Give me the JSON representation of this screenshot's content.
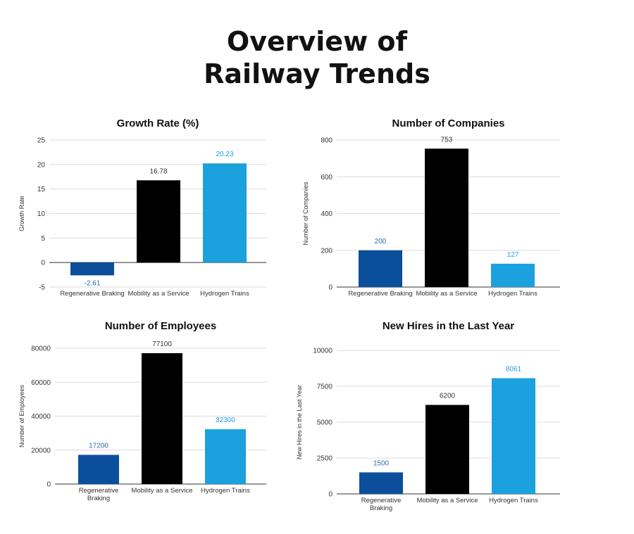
{
  "page_title": [
    "Overview of",
    "Railway Trends"
  ],
  "colors": {
    "regenerative": "#0b4f9c",
    "mobility": "#000000",
    "hydrogen": "#1ba1de",
    "label_dark": "#333333",
    "label_regen": "#2a6fb8",
    "label_hydro": "#1ba1de"
  },
  "chart_data": [
    {
      "type": "bar",
      "title": "Growth Rate (%)",
      "ylabel": "Growth Rate",
      "xlabel": "",
      "categories": [
        [
          "Regenerative Braking"
        ],
        [
          "Mobility as a Service"
        ],
        [
          "Hydrogen Trains"
        ]
      ],
      "values": [
        -2.61,
        16.78,
        20.23
      ],
      "value_labels": [
        "-2.61",
        "16.78",
        "20.23"
      ],
      "ylim": [
        -5,
        25
      ],
      "yticks": [
        -5,
        0,
        5,
        10,
        15,
        20,
        25
      ],
      "ytick_labels": [
        "-5",
        "0",
        "5",
        "10",
        "15",
        "20",
        "25"
      ],
      "grid": true
    },
    {
      "type": "bar",
      "title": "Number of Companies",
      "ylabel": "Number of Companies",
      "xlabel": "",
      "categories": [
        [
          "Regenerative Braking"
        ],
        [
          "Mobility as a Service"
        ],
        [
          "Hydrogen Trains"
        ]
      ],
      "values": [
        200,
        753,
        127
      ],
      "value_labels": [
        "200",
        "753",
        "127"
      ],
      "ylim": [
        0,
        800
      ],
      "yticks": [
        0,
        200,
        400,
        600,
        800
      ],
      "ytick_labels": [
        "0",
        "200",
        "400",
        "600",
        "800"
      ],
      "grid": true
    },
    {
      "type": "bar",
      "title": "Number of Employees",
      "ylabel": "Number of Employees",
      "xlabel": "",
      "categories": [
        [
          "Regenerative",
          "Braking"
        ],
        [
          "Mobility as a Service"
        ],
        [
          "Hydrogen Trains"
        ]
      ],
      "values": [
        17200,
        77100,
        32300
      ],
      "value_labels": [
        "17200",
        "77100",
        "32300"
      ],
      "ylim": [
        0,
        80000
      ],
      "yticks": [
        0,
        20000,
        40000,
        60000,
        80000
      ],
      "ytick_labels": [
        "0",
        "20000",
        "40000",
        "60000",
        "80000"
      ],
      "grid": true
    },
    {
      "type": "bar",
      "title": "New Hires in the Last Year",
      "ylabel": "New Hires in the Last Year",
      "xlabel": "",
      "categories": [
        [
          "Regenerative",
          "Braking"
        ],
        [
          "Mobility as a Service"
        ],
        [
          "Hydrogen Trains"
        ]
      ],
      "values": [
        1500,
        6200,
        8061
      ],
      "value_labels": [
        "1500",
        "6200",
        "8061"
      ],
      "ylim": [
        0,
        10000
      ],
      "yticks": [
        0,
        2500,
        5000,
        7500,
        10000
      ],
      "ytick_labels": [
        "0",
        "2500",
        "5000",
        "7500",
        "10000"
      ],
      "grid": true
    }
  ]
}
